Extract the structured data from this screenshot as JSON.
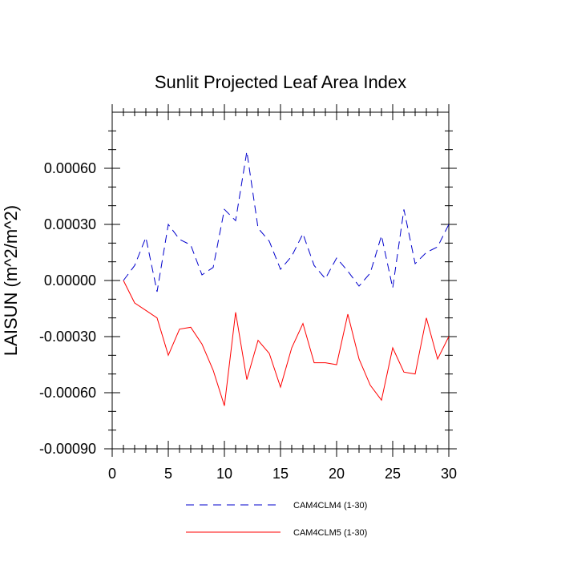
{
  "chart_data": {
    "type": "line",
    "title": "Sunlit Projected Leaf Area Index",
    "xlabel": "",
    "ylabel": "LAISUN  (m^2/m^2)",
    "xlim": [
      0,
      30
    ],
    "ylim": [
      -0.0009,
      0.0009
    ],
    "xticks": [
      0,
      5,
      10,
      15,
      20,
      25,
      30
    ],
    "xtick_labels": [
      "0",
      "5",
      "10",
      "15",
      "20",
      "25",
      "30"
    ],
    "yticks": [
      -0.0009,
      -0.0006,
      -0.0003,
      0.0,
      0.0003,
      0.0006
    ],
    "ytick_labels": [
      "-0.00090",
      "-0.00060",
      "-0.00030",
      "0.00000",
      "0.00030",
      "0.00060"
    ],
    "x": [
      1,
      2,
      3,
      4,
      5,
      6,
      7,
      8,
      9,
      10,
      11,
      12,
      13,
      14,
      15,
      16,
      17,
      18,
      19,
      20,
      21,
      22,
      23,
      24,
      25,
      26,
      27,
      28,
      29,
      30
    ],
    "series": [
      {
        "name": "CAM4CLM4 (1-30)",
        "color": "#0000cc",
        "style": "dashed",
        "values": [
          0.0,
          8e-05,
          0.00023,
          -6e-05,
          0.0003,
          0.00022,
          0.00019,
          3e-05,
          7e-05,
          0.00038,
          0.00032,
          0.00069,
          0.00028,
          0.00021,
          6e-05,
          0.00013,
          0.00025,
          8e-05,
          1e-05,
          0.00012,
          5e-05,
          -3e-05,
          4e-05,
          0.00024,
          -4e-05,
          0.00038,
          9e-05,
          0.00015,
          0.00018,
          0.0003
        ]
      },
      {
        "name": "CAM4CLM5 (1-30)",
        "color": "#ff0000",
        "style": "solid",
        "values": [
          0.0,
          -0.00012,
          -0.00016,
          -0.0002,
          -0.0004,
          -0.00026,
          -0.00025,
          -0.00034,
          -0.00048,
          -0.00067,
          -0.00017,
          -0.00053,
          -0.00032,
          -0.00039,
          -0.00057,
          -0.00036,
          -0.00023,
          -0.00044,
          -0.00044,
          -0.00045,
          -0.00018,
          -0.00042,
          -0.00056,
          -0.00064,
          -0.00036,
          -0.00049,
          -0.0005,
          -0.0002,
          -0.00042,
          -0.0003
        ]
      }
    ],
    "legend": "bottom-center",
    "grid": false
  }
}
